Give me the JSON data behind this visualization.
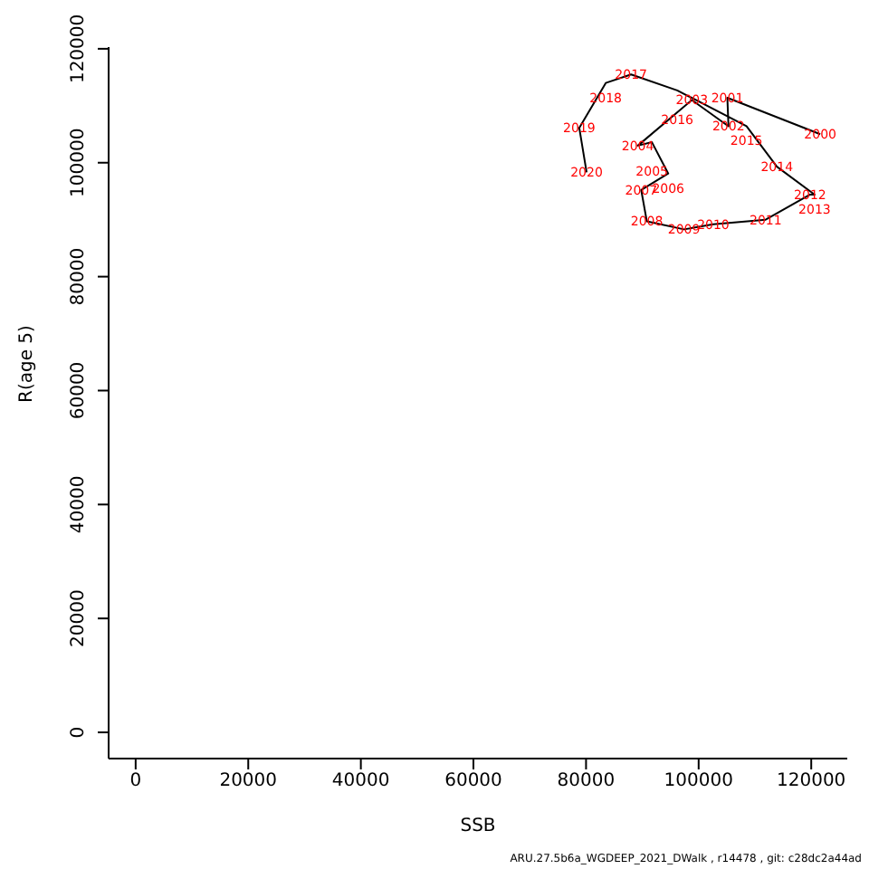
{
  "chart_data": {
    "type": "line",
    "xlabel": "SSB",
    "ylabel": "R(age 5)",
    "x": [
      121600,
      105100,
      105300,
      98800,
      89200,
      91700,
      94600,
      89800,
      90800,
      97400,
      102600,
      111900,
      119800,
      120600,
      113900,
      108500,
      96200,
      88000,
      83500,
      78800,
      80100
    ],
    "series": [
      {
        "color": "#000000",
        "values": [
          105000,
          111400,
          106400,
          111000,
          103000,
          103600,
          98100,
          95200,
          89700,
          88300,
          89200,
          90000,
          94400,
          94400,
          99300,
          106400,
          112700,
          115500,
          114000,
          106100,
          98300
        ]
      }
    ],
    "xlim": [
      -4800,
      126400
    ],
    "ylim": [
      -4600,
      120300
    ],
    "xticks": [
      0,
      20000,
      40000,
      60000,
      80000,
      100000,
      120000
    ],
    "yticks": [
      0,
      20000,
      40000,
      60000,
      80000,
      100000,
      120000
    ],
    "marker": "none",
    "annotations": [
      {
        "text": "2000",
        "x": 121600,
        "y": 105000
      },
      {
        "text": "2001",
        "x": 105100,
        "y": 111400
      },
      {
        "text": "2002",
        "x": 105300,
        "y": 106400
      },
      {
        "text": "2003",
        "x": 98800,
        "y": 111000
      },
      {
        "text": "2004",
        "x": 89200,
        "y": 103000
      },
      {
        "text": "2005",
        "x": 91700,
        "y": 103600
      },
      {
        "text": "2006",
        "x": 94600,
        "y": 98100
      },
      {
        "text": "2007",
        "x": 89800,
        "y": 95200
      },
      {
        "text": "2008",
        "x": 90800,
        "y": 89700
      },
      {
        "text": "2009",
        "x": 97400,
        "y": 88300
      },
      {
        "text": "2010",
        "x": 102600,
        "y": 89200
      },
      {
        "text": "2011",
        "x": 111900,
        "y": 90000
      },
      {
        "text": "2012",
        "x": 119800,
        "y": 94400
      },
      {
        "text": "2013",
        "x": 120600,
        "y": 94400
      },
      {
        "text": "2014",
        "x": 113900,
        "y": 99300
      },
      {
        "text": "2015",
        "x": 108500,
        "y": 106400
      },
      {
        "text": "2016",
        "x": 96200,
        "y": 112700
      },
      {
        "text": "2017",
        "x": 88000,
        "y": 115500
      },
      {
        "text": "2018",
        "x": 83500,
        "y": 114000
      },
      {
        "text": "2019",
        "x": 78800,
        "y": 106100
      },
      {
        "text": "2020",
        "x": 80100,
        "y": 98300
      },
      "ARU.27.5b6a_WGDEEP_2021_DWalk , r14478 , git: c28dc2a44ad"
    ]
  }
}
